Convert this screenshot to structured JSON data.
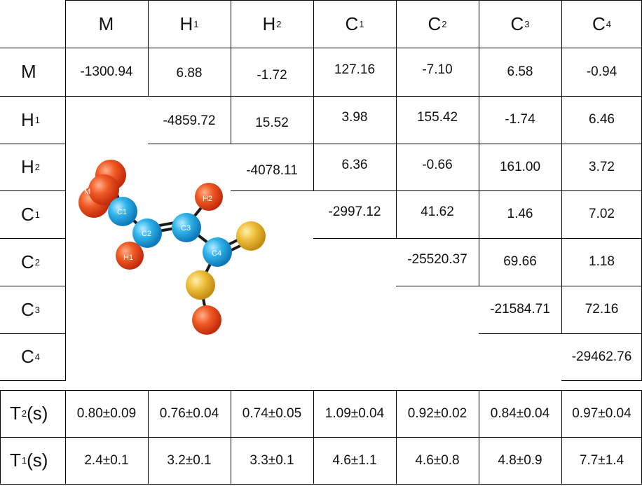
{
  "column_headers": [
    {
      "base": "M",
      "sub": ""
    },
    {
      "base": "H",
      "sub": "1"
    },
    {
      "base": "H",
      "sub": "2"
    },
    {
      "base": "C",
      "sub": "1"
    },
    {
      "base": "C",
      "sub": "2"
    },
    {
      "base": "C",
      "sub": "3"
    },
    {
      "base": "C",
      "sub": "4"
    }
  ],
  "row_headers": [
    {
      "base": "M",
      "sub": ""
    },
    {
      "base": "H",
      "sub": "1"
    },
    {
      "base": "H",
      "sub": "2"
    },
    {
      "base": "C",
      "sub": "1"
    },
    {
      "base": "C",
      "sub": "2"
    },
    {
      "base": "C",
      "sub": "3"
    },
    {
      "base": "C",
      "sub": "4"
    }
  ],
  "matrix": [
    [
      "-1300.94",
      "6.88",
      "-1.72",
      "127.16",
      "-7.10",
      "6.58",
      "-0.94"
    ],
    [
      "",
      "-4859.72",
      "15.52",
      "3.98",
      "155.42",
      "-1.74",
      "6.46"
    ],
    [
      "",
      "",
      "-4078.11",
      "6.36",
      "-0.66",
      "161.00",
      "3.72"
    ],
    [
      "",
      "",
      "",
      "-2997.12",
      "41.62",
      "1.46",
      "7.02"
    ],
    [
      "",
      "",
      "",
      "",
      "-25520.37",
      "69.66",
      "1.18"
    ],
    [
      "",
      "",
      "",
      "",
      "",
      "-21584.71",
      "72.16"
    ],
    [
      "",
      "",
      "",
      "",
      "",
      "",
      "-29462.76"
    ]
  ],
  "relaxation": [
    {
      "label_base": "T",
      "label_sub": "2",
      "label_suffix": "(s)",
      "values": [
        "0.80±0.09",
        "0.76±0.04",
        "0.74±0.05",
        "1.09±0.04",
        "0.92±0.02",
        "0.84±0.04",
        "0.97±0.04"
      ]
    },
    {
      "label_base": "T",
      "label_sub": "1",
      "label_suffix": "(s)",
      "values": [
        "2.4±0.1",
        "3.2±0.1",
        "3.3±0.1",
        "4.6±1.1",
        "4.6±0.8",
        "4.8±0.9",
        "7.7±1.4"
      ]
    }
  ],
  "molecule": {
    "atom_labels": [
      "M",
      "C1",
      "C2",
      "C3",
      "C4",
      "H1",
      "H2"
    ],
    "colors": {
      "carbon": "#29a8e0",
      "hydrogen": "#e84a1c",
      "oxygen": "#e8b832"
    }
  }
}
